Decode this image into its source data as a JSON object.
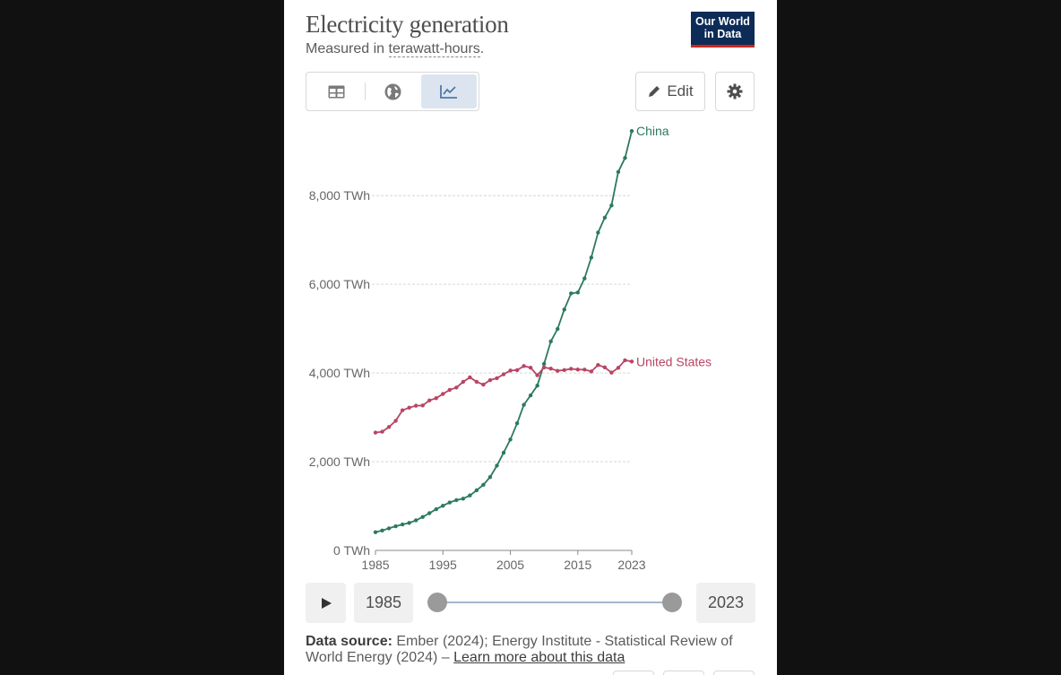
{
  "header": {
    "title": "Electricity generation",
    "subtitle_prefix": "Measured in ",
    "subtitle_unit": "terawatt-hours",
    "subtitle_suffix": ".",
    "logo_line1": "Our World",
    "logo_line2": "in Data"
  },
  "toolbar": {
    "tabs": [
      {
        "icon": "table-icon"
      },
      {
        "icon": "globe-icon"
      },
      {
        "icon": "line-chart-icon",
        "active": true
      }
    ],
    "edit_label": "Edit",
    "settings_icon": "gear-icon"
  },
  "chart_data": {
    "type": "line",
    "title": "Electricity generation",
    "ylabel": "TWh",
    "ylim": [
      0,
      9500
    ],
    "y_ticks": [
      0,
      2000,
      4000,
      6000,
      8000
    ],
    "y_tick_labels": [
      "0 TWh",
      "2,000 TWh",
      "4,000 TWh",
      "6,000 TWh",
      "8,000 TWh"
    ],
    "xlim": [
      1985,
      2023
    ],
    "x_ticks": [
      1985,
      1995,
      2005,
      2015,
      2023
    ],
    "x_tick_labels": [
      "1985",
      "1995",
      "2005",
      "2015",
      "2023"
    ],
    "x": [
      1985,
      1986,
      1987,
      1988,
      1989,
      1990,
      1991,
      1992,
      1993,
      1994,
      1995,
      1996,
      1997,
      1998,
      1999,
      2000,
      2001,
      2002,
      2003,
      2004,
      2005,
      2006,
      2007,
      2008,
      2009,
      2010,
      2011,
      2012,
      2013,
      2014,
      2015,
      2016,
      2017,
      2018,
      2019,
      2020,
      2021,
      2022,
      2023
    ],
    "series": [
      {
        "name": "China",
        "color": "#2c7a5c",
        "values": [
          411,
          449,
          497,
          545,
          585,
          621,
          678,
          754,
          839,
          928,
          1007,
          1081,
          1134,
          1167,
          1239,
          1356,
          1480,
          1654,
          1911,
          2203,
          2500,
          2866,
          3282,
          3496,
          3715,
          4208,
          4713,
          4994,
          5432,
          5794,
          5815,
          6133,
          6604,
          7166,
          7503,
          7779,
          8534,
          8849,
          9456
        ]
      },
      {
        "name": "United States",
        "color": "#b84565",
        "values": [
          2657,
          2676,
          2784,
          2923,
          3160,
          3218,
          3262,
          3268,
          3381,
          3433,
          3528,
          3620,
          3672,
          3800,
          3902,
          3802,
          3737,
          3840,
          3883,
          3971,
          4055,
          4065,
          4157,
          4119,
          3950,
          4125,
          4100,
          4048,
          4066,
          4094,
          4078,
          4077,
          4035,
          4181,
          4128,
          4009,
          4117,
          4287,
          4259
        ]
      }
    ]
  },
  "timeline": {
    "play_icon": "play-icon",
    "start_year": "1985",
    "end_year": "2023"
  },
  "footer": {
    "source_label": "Data source:",
    "source_text": " Ember (2024); Energy Institute - Statistical Review of World Energy (2024) – ",
    "learn_more": "Learn more about this data"
  }
}
